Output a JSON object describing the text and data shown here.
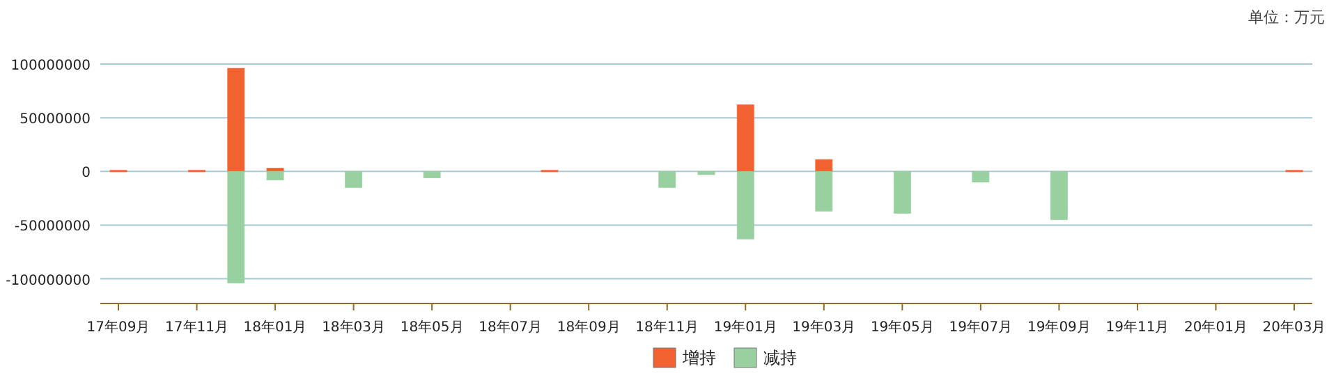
{
  "chart_data": {
    "type": "bar",
    "stacked": true,
    "annotations": [
      "单位：万元"
    ],
    "categories": [
      "17年09月",
      null,
      "17年11月",
      null,
      "18年01月",
      null,
      "18年03月",
      null,
      "18年05月",
      null,
      "18年07月",
      null,
      "18年09月",
      null,
      "18年11月",
      null,
      "19年01月",
      null,
      "19年03月",
      null,
      "19年05月",
      null,
      "19年07月",
      null,
      "19年09月",
      null,
      "19年11月",
      null,
      "20年01月",
      null,
      "20年03月"
    ],
    "series": [
      {
        "name": "增持",
        "color": "#f26130",
        "values": [
          1000000,
          null,
          1000000,
          96000000,
          3000000,
          null,
          null,
          null,
          null,
          null,
          null,
          1000000,
          null,
          null,
          null,
          null,
          62000000,
          null,
          11000000,
          null,
          null,
          null,
          null,
          null,
          null,
          null,
          null,
          null,
          null,
          null,
          1000000
        ]
      },
      {
        "name": "减持",
        "color": "#99d0a0",
        "values": [
          null,
          null,
          null,
          -104000000,
          -8000000,
          null,
          -15000000,
          null,
          -6000000,
          null,
          null,
          null,
          null,
          null,
          -15000000,
          -3000000,
          -63000000,
          null,
          -37000000,
          null,
          -39000000,
          null,
          -10000000,
          null,
          -45000000,
          null,
          null,
          null,
          null,
          null,
          null
        ]
      }
    ],
    "ylim": [
      -123000000,
      100000000
    ],
    "yticks": [
      -100000000,
      -50000000,
      0,
      50000000,
      100000000
    ],
    "grid": "y",
    "legend": "bottom"
  }
}
